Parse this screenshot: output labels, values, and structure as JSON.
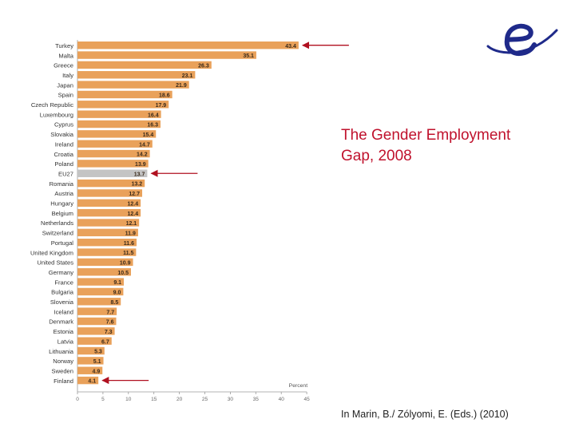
{
  "slide": {
    "title_line1": "The Gender Employment",
    "title_line2": "Gap, 2008",
    "citation": "In Marin, B./ Zólyomi, E. (Eds.) (2010)"
  },
  "colors": {
    "bar": "#e9a15a",
    "bar_highlight": "#c4c4c4",
    "arrow": "#b01020",
    "title": "#c0122d",
    "logo": "#1f2a8a",
    "axis": "#9a9a9a"
  },
  "logo": {
    "icon": "euro-swirl-logo-icon"
  },
  "chart_data": {
    "type": "bar",
    "orientation": "horizontal",
    "title": "",
    "xlabel": "Percent",
    "ylabel": "",
    "xlim": [
      0,
      45
    ],
    "xticks": [
      0,
      5,
      10,
      15,
      20,
      25,
      30,
      35,
      40,
      45
    ],
    "categories": [
      "Turkey",
      "Malta",
      "Greece",
      "Italy",
      "Japan",
      "Spain",
      "Czech Republic",
      "Luxembourg",
      "Cyprus",
      "Slovakia",
      "Ireland",
      "Croatia",
      "Poland",
      "EU27",
      "Romania",
      "Austria",
      "Hungary",
      "Belgium",
      "Netherlands",
      "Switzerland",
      "Portugal",
      "United Kingdom",
      "United States",
      "Germany",
      "France",
      "Bulgaria",
      "Slovenia",
      "Iceland",
      "Denmark",
      "Estonia",
      "Latvia",
      "Lithuania",
      "Norway",
      "Sweden",
      "Finland"
    ],
    "values": [
      43.4,
      35.1,
      26.3,
      23.1,
      21.9,
      18.6,
      17.9,
      16.4,
      16.3,
      15.4,
      14.7,
      14.2,
      13.9,
      13.7,
      13.2,
      12.7,
      12.4,
      12.4,
      12.1,
      11.9,
      11.6,
      11.5,
      10.9,
      10.5,
      9.1,
      9.0,
      8.5,
      7.7,
      7.6,
      7.3,
      6.7,
      5.3,
      5.1,
      4.9,
      4.1
    ],
    "highlight": [
      "EU27"
    ],
    "arrows_pointing_at": [
      "Turkey",
      "EU27",
      "Finland"
    ]
  }
}
